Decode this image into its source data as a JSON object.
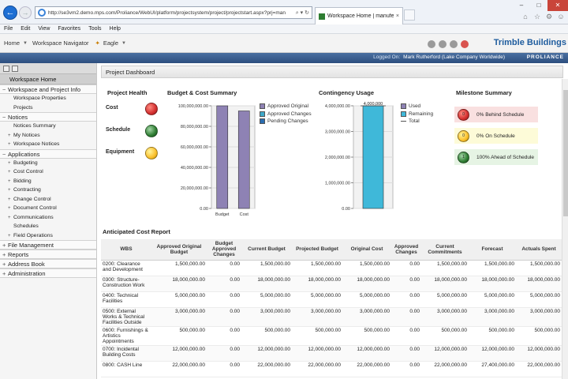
{
  "browser": {
    "url": "http://se3vm2.demo.mps.com/Proliance/WebUI/platform/projectsystem/project/projectstart.aspx?prj=man",
    "addr_tools": "⌕ ▾ ↻",
    "tab_title": "Workspace Home | manufe...",
    "tab_close": "×",
    "menu": [
      "File",
      "Edit",
      "View",
      "Favorites",
      "Tools",
      "Help"
    ]
  },
  "header": {
    "home": "Home",
    "navigator": "Workspace Navigator",
    "project": "Eagle",
    "brand": "Trimble Buildings",
    "logged_on_label": "Logged On:",
    "logged_on_user": "Mark Rutherford (Lake Company Worldwide)",
    "proliance": "PROLIANCE"
  },
  "sidebar": {
    "home": "Workspace Home",
    "sections": [
      {
        "label": "Workspace and Project Info",
        "sign": "−",
        "items": [
          {
            "label": "Workspace Properties",
            "sign": ""
          },
          {
            "label": "Projects",
            "sign": ""
          }
        ]
      },
      {
        "label": "Notices",
        "sign": "−",
        "items": [
          {
            "label": "Notices Summary",
            "sign": ""
          },
          {
            "label": "My Notices",
            "sign": "+"
          },
          {
            "label": "Workspace Notices",
            "sign": "+"
          }
        ]
      },
      {
        "label": "Applications",
        "sign": "−",
        "items": [
          {
            "label": "Budgeting",
            "sign": "+"
          },
          {
            "label": "Cost Control",
            "sign": "+"
          },
          {
            "label": "Bidding",
            "sign": "+"
          },
          {
            "label": "Contracting",
            "sign": "+"
          },
          {
            "label": "Change Control",
            "sign": "+"
          },
          {
            "label": "Document Control",
            "sign": "+"
          },
          {
            "label": "Communications",
            "sign": "+"
          },
          {
            "label": "Schedules",
            "sign": ""
          },
          {
            "label": "Field Operations",
            "sign": "+"
          }
        ]
      },
      {
        "label": "File Management",
        "sign": "+",
        "items": []
      },
      {
        "label": "Reports",
        "sign": "+",
        "items": []
      },
      {
        "label": "Address Book",
        "sign": "+",
        "items": []
      },
      {
        "label": "Administration",
        "sign": "+",
        "items": []
      }
    ]
  },
  "dashboard": {
    "title": "Project Dashboard",
    "health": {
      "title": "Project Health",
      "rows": [
        {
          "label": "Cost",
          "status": "red"
        },
        {
          "label": "Schedule",
          "status": "green"
        },
        {
          "label": "Equipment",
          "status": "yellow"
        }
      ]
    },
    "milestones": {
      "title": "Milestone Summary",
      "items": [
        {
          "label": "0% Behind Schedule",
          "count": "0",
          "color": "#f9e0e0",
          "dot": "red"
        },
        {
          "label": "0% On Schedule",
          "count": "0",
          "color": "#fdfbd8",
          "dot": "yellow"
        },
        {
          "label": "100% Ahead of Schedule",
          "count": "1",
          "color": "#e6f4e4",
          "dot": "green"
        }
      ]
    }
  },
  "chart_data": [
    {
      "type": "bar",
      "title": "Budget & Cost Summary",
      "categories": [
        "Budget",
        "Cost"
      ],
      "series": [
        {
          "name": "Approved Original",
          "color": "#8e82b4",
          "values": [
            100000000,
            95000000
          ]
        },
        {
          "name": "Approved Changes",
          "color": "#3fa9c9",
          "values": [
            0,
            0
          ]
        },
        {
          "name": "Pending Changes",
          "color": "#2a6db0",
          "values": [
            0,
            0
          ]
        }
      ],
      "yticks": [
        "0.00",
        "20,000,000.00",
        "40,000,000.00",
        "60,000,000.00",
        "80,000,000.00",
        "100,000,000.00"
      ],
      "ylim": [
        0,
        100000000
      ],
      "legend": "right"
    },
    {
      "type": "bar",
      "title": "Contingency Usage",
      "categories": [
        ""
      ],
      "series": [
        {
          "name": "Used",
          "color": "#8e82b4",
          "values": [
            0
          ]
        },
        {
          "name": "Remaining",
          "color": "#3fb8d9",
          "values": [
            4000000
          ]
        },
        {
          "name": "Total",
          "color": "#555555",
          "values": [
            4000000
          ]
        }
      ],
      "data_label": "4,000,000",
      "yticks": [
        "0.00",
        "1,000,000.00",
        "2,000,000.00",
        "3,000,000.00",
        "4,000,000.00"
      ],
      "ylim": [
        0,
        4000000
      ],
      "legend": "right"
    }
  ],
  "report": {
    "title": "Anticipated Cost Report",
    "columns": [
      "WBS",
      "Approved Original Budget",
      "Budget Approved Changes",
      "Current Budget",
      "Projected Budget",
      "Original Cost",
      "Approved Changes",
      "Current Commitments",
      "Forecast",
      "Actuals Spent"
    ],
    "rows": [
      [
        "0200: Clearance and Development",
        "1,500,000.00",
        "0.00",
        "1,500,000.00",
        "1,500,000.00",
        "1,500,000.00",
        "0.00",
        "1,500,000.00",
        "1,500,000.00",
        "1,500,000.00"
      ],
      [
        "0300: Structure-Construction Work",
        "18,000,000.00",
        "0.00",
        "18,000,000.00",
        "18,000,000.00",
        "18,000,000.00",
        "0.00",
        "18,000,000.00",
        "18,000,000.00",
        "18,000,000.00"
      ],
      [
        "0400: Technical Facilities",
        "5,000,000.00",
        "0.00",
        "5,000,000.00",
        "5,000,000.00",
        "5,000,000.00",
        "0.00",
        "5,000,000.00",
        "5,000,000.00",
        "5,000,000.00"
      ],
      [
        "0500: External Works & Technical Facilities Outside",
        "3,000,000.00",
        "0.00",
        "3,000,000.00",
        "3,000,000.00",
        "3,000,000.00",
        "0.00",
        "3,000,000.00",
        "3,000,000.00",
        "3,000,000.00"
      ],
      [
        "0600: Furnishings & Artistics Appointments",
        "500,000.00",
        "0.00",
        "500,000.00",
        "500,000.00",
        "500,000.00",
        "0.00",
        "500,000.00",
        "500,000.00",
        "500,000.00"
      ],
      [
        "0700: Incidental Building Costs",
        "12,000,000.00",
        "0.00",
        "12,000,000.00",
        "12,000,000.00",
        "12,000,000.00",
        "0.00",
        "12,000,000.00",
        "12,000,000.00",
        "12,000,000.00"
      ],
      [
        "0800: CASH Line",
        "22,000,000.00",
        "0.00",
        "22,000,000.00",
        "22,000,000.00",
        "22,000,000.00",
        "0.00",
        "22,000,000.00",
        "27,400,000.00",
        "22,000,000.00"
      ]
    ]
  }
}
